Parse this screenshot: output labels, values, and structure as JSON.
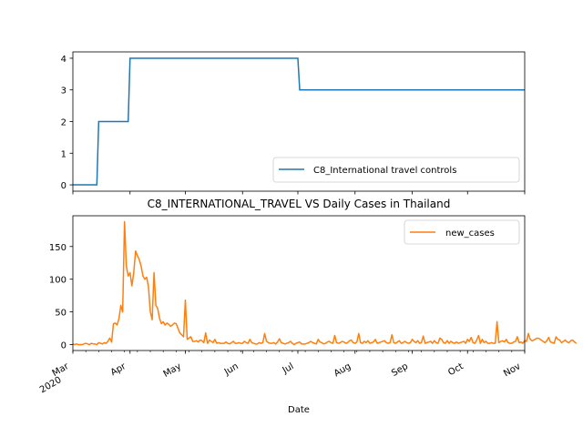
{
  "chart_data": [
    {
      "type": "line",
      "title": "",
      "xlabel": "",
      "ylabel": "",
      "ylim": [
        -0.2,
        4.2
      ],
      "yticks": [
        0,
        1,
        2,
        3,
        4
      ],
      "xlim": [
        "2020-03-01",
        "2020-11-01"
      ],
      "grid": false,
      "legend_placement": "lower-right",
      "series": [
        {
          "name": "C8_International travel controls",
          "color": "#1f77b4",
          "points": [
            [
              "2020-03-01",
              0
            ],
            [
              "2020-03-14",
              0
            ],
            [
              "2020-03-15",
              2
            ],
            [
              "2020-03-31",
              2
            ],
            [
              "2020-04-01",
              4
            ],
            [
              "2020-07-01",
              4
            ],
            [
              "2020-07-02",
              3
            ],
            [
              "2020-11-01",
              3
            ]
          ]
        }
      ]
    },
    {
      "type": "line",
      "title": "C8_INTERNATIONAL_TRAVEL VS Daily Cases in Thailand",
      "xlabel": "Date",
      "ylabel": "",
      "ylim": [
        -9,
        197
      ],
      "yticks": [
        0,
        50,
        100,
        150
      ],
      "xlim": [
        "2020-03-01",
        "2020-11-01"
      ],
      "xticks": [
        {
          "date": "2020-03-01",
          "label": "Mar",
          "sublabel": "2020"
        },
        {
          "date": "2020-04-01",
          "label": "Apr"
        },
        {
          "date": "2020-05-01",
          "label": "May"
        },
        {
          "date": "2020-06-01",
          "label": "Jun"
        },
        {
          "date": "2020-07-01",
          "label": "Jul"
        },
        {
          "date": "2020-08-01",
          "label": "Aug"
        },
        {
          "date": "2020-09-01",
          "label": "Sep"
        },
        {
          "date": "2020-10-01",
          "label": "Oct"
        },
        {
          "date": "2020-11-01",
          "label": "Nov"
        }
      ],
      "grid": false,
      "legend_placement": "upper-right",
      "series": [
        {
          "name": "new_cases",
          "color": "#ff7f0e",
          "values": [
            1,
            0,
            1,
            0,
            0,
            0,
            1,
            2,
            1,
            0,
            2,
            1,
            1,
            0,
            3,
            2,
            1,
            3,
            2,
            5,
            10,
            4,
            32,
            33,
            30,
            40,
            60,
            50,
            188,
            120,
            105,
            110,
            90,
            110,
            143,
            136,
            130,
            120,
            105,
            100,
            103,
            88,
            50,
            38,
            110,
            60,
            55,
            40,
            32,
            35,
            30,
            33,
            31,
            28,
            30,
            33,
            32,
            25,
            18,
            15,
            12,
            68,
            8,
            10,
            12,
            5,
            5,
            6,
            4,
            7,
            6,
            3,
            18,
            2,
            7,
            5,
            3,
            8,
            2,
            3,
            2,
            2,
            2,
            4,
            2,
            1,
            3,
            5,
            2,
            2,
            3,
            2,
            2,
            5,
            3,
            2,
            8,
            3,
            2,
            1,
            1,
            3,
            2,
            3,
            17,
            5,
            3,
            2,
            2,
            3,
            1,
            4,
            9,
            3,
            2,
            1,
            2,
            3,
            5,
            2,
            0,
            2,
            3,
            4,
            1,
            1,
            1,
            2,
            3,
            5,
            3,
            2,
            1,
            8,
            4,
            3,
            1,
            2,
            4,
            5,
            3,
            2,
            14,
            3,
            2,
            3,
            5,
            4,
            2,
            3,
            6,
            7,
            3,
            2,
            4,
            17,
            3,
            2,
            5,
            3,
            6,
            2,
            3,
            4,
            8,
            2,
            3,
            4,
            5,
            6,
            3,
            2,
            3,
            15,
            3,
            2,
            4,
            6,
            2,
            3,
            5,
            3,
            2,
            3,
            8,
            5,
            3,
            6,
            2,
            3,
            13,
            2,
            3,
            4,
            5,
            2,
            6,
            3,
            2,
            10,
            8,
            3,
            2,
            6,
            2,
            5,
            3,
            2,
            4,
            2,
            3,
            4,
            5,
            2,
            8,
            5,
            11,
            3,
            2,
            7,
            14,
            2,
            8,
            3,
            5,
            2,
            2,
            3,
            2,
            2,
            35,
            3,
            5,
            6,
            4,
            8,
            3,
            2,
            2,
            4,
            5,
            12,
            3,
            4,
            2,
            6,
            5,
            17,
            8,
            6,
            7,
            9,
            10,
            9,
            7,
            5,
            3,
            6,
            11,
            4,
            3,
            2,
            12,
            8,
            7,
            3,
            5,
            7,
            4,
            3,
            6,
            7,
            4,
            2
          ]
        }
      ]
    }
  ]
}
